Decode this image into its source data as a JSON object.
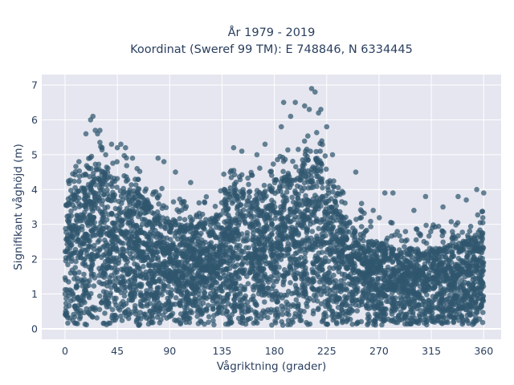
{
  "chart_data": {
    "type": "scatter",
    "title_line1": "År 1979 - 2019",
    "title_line2": "Koordinat (Sweref 99 TM): E 748846, N 6334445",
    "xlabel": "Vågriktning (grader)",
    "ylabel": "Signifikant våghöjd (m)",
    "xlim": [
      -20,
      375
    ],
    "ylim": [
      -0.3,
      7.3
    ],
    "x_ticks": [
      0,
      45,
      90,
      135,
      180,
      225,
      270,
      315,
      360
    ],
    "y_ticks": [
      0,
      1,
      2,
      3,
      4,
      5,
      6,
      7
    ],
    "grid": true,
    "marker_color": "#2f566d",
    "plot_bg": "#e5e6ef",
    "envelope": {
      "direction_deg": [
        0,
        10,
        20,
        25,
        30,
        40,
        45,
        50,
        60,
        70,
        80,
        90,
        100,
        110,
        120,
        130,
        135,
        140,
        150,
        160,
        170,
        180,
        190,
        200,
        205,
        210,
        215,
        220,
        225,
        230,
        240,
        250,
        260,
        270,
        280,
        290,
        300,
        315,
        330,
        345,
        360
      ],
      "max_height_m": [
        3.5,
        4.2,
        4.6,
        4.8,
        4.7,
        4.4,
        4.2,
        4.3,
        4.0,
        3.7,
        3.4,
        3.2,
        3.0,
        3.0,
        3.1,
        3.3,
        3.8,
        4.0,
        4.1,
        4.0,
        4.1,
        4.3,
        4.5,
        4.8,
        5.0,
        5.1,
        5.0,
        4.8,
        4.4,
        3.8,
        3.3,
        2.8,
        2.6,
        2.5,
        2.4,
        2.3,
        2.3,
        2.3,
        2.4,
        2.6,
        2.8
      ],
      "min_height_m": 0.1
    },
    "outliers": [
      {
        "x": 12,
        "y": 4.8
      },
      {
        "x": 18,
        "y": 5.6
      },
      {
        "x": 22,
        "y": 6.0
      },
      {
        "x": 24,
        "y": 6.1
      },
      {
        "x": 26,
        "y": 5.7
      },
      {
        "x": 28,
        "y": 5.6
      },
      {
        "x": 30,
        "y": 5.7
      },
      {
        "x": 35,
        "y": 5.0
      },
      {
        "x": 40,
        "y": 5.3
      },
      {
        "x": 45,
        "y": 5.2
      },
      {
        "x": 48,
        "y": 5.3
      },
      {
        "x": 52,
        "y": 5.2
      },
      {
        "x": 58,
        "y": 4.9
      },
      {
        "x": 62,
        "y": 4.6
      },
      {
        "x": 80,
        "y": 4.9
      },
      {
        "x": 85,
        "y": 4.8
      },
      {
        "x": 95,
        "y": 4.5
      },
      {
        "x": 108,
        "y": 4.2
      },
      {
        "x": 145,
        "y": 5.2
      },
      {
        "x": 152,
        "y": 5.1
      },
      {
        "x": 165,
        "y": 5.0
      },
      {
        "x": 172,
        "y": 5.3
      },
      {
        "x": 186,
        "y": 5.8
      },
      {
        "x": 188,
        "y": 6.5
      },
      {
        "x": 194,
        "y": 6.1
      },
      {
        "x": 198,
        "y": 6.5
      },
      {
        "x": 206,
        "y": 6.4
      },
      {
        "x": 210,
        "y": 6.3
      },
      {
        "x": 212,
        "y": 6.9
      },
      {
        "x": 215,
        "y": 6.8
      },
      {
        "x": 218,
        "y": 6.2
      },
      {
        "x": 220,
        "y": 6.3
      },
      {
        "x": 225,
        "y": 5.8
      },
      {
        "x": 230,
        "y": 5.0
      },
      {
        "x": 250,
        "y": 4.5
      },
      {
        "x": 255,
        "y": 3.6
      },
      {
        "x": 265,
        "y": 3.4
      },
      {
        "x": 275,
        "y": 3.9
      },
      {
        "x": 282,
        "y": 3.9
      },
      {
        "x": 300,
        "y": 3.4
      },
      {
        "x": 310,
        "y": 3.8
      },
      {
        "x": 325,
        "y": 3.5
      },
      {
        "x": 338,
        "y": 3.8
      },
      {
        "x": 345,
        "y": 3.7
      },
      {
        "x": 354,
        "y": 4.0
      },
      {
        "x": 360,
        "y": 3.9
      }
    ]
  }
}
